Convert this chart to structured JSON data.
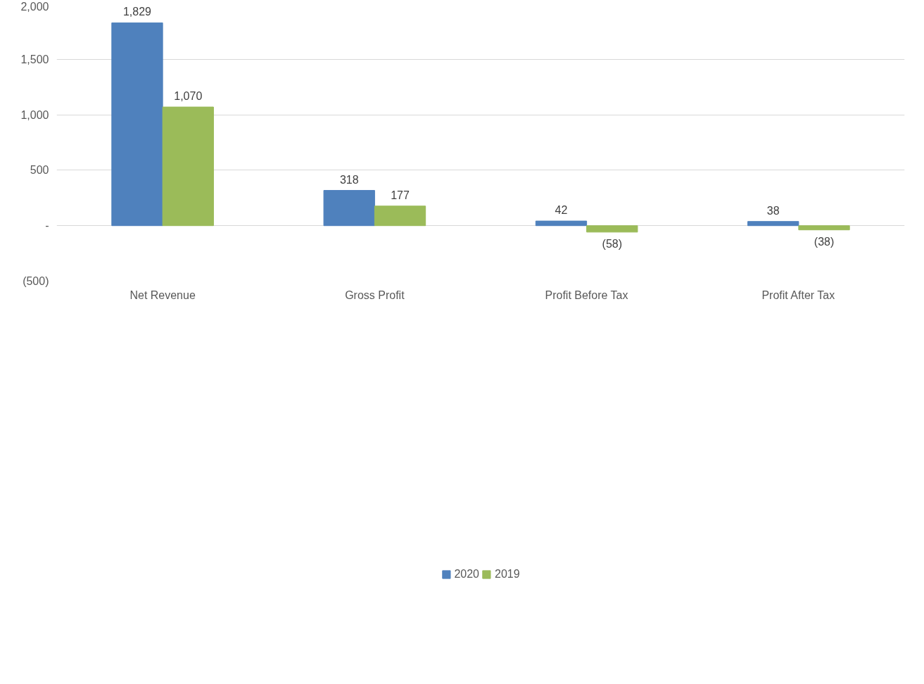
{
  "chart_data": {
    "type": "bar",
    "categories": [
      "Net Revenue",
      "Gross Profit",
      "Profit Before Tax",
      "Profit After Tax"
    ],
    "series": [
      {
        "name": "2020",
        "color": "#4f81bd",
        "values": [
          1829,
          318,
          42,
          38
        ],
        "value_labels": [
          "1,829",
          "318",
          "42",
          "38"
        ]
      },
      {
        "name": "2019",
        "color": "#9bbb59",
        "values": [
          1070,
          177,
          -58,
          -38
        ],
        "value_labels": [
          "1,070",
          "177",
          "(58)",
          "(38)"
        ]
      }
    ],
    "ylim": [
      -500,
      2000
    ],
    "yticks": [
      {
        "value": -500,
        "label": "(500)"
      },
      {
        "value": 0,
        "label": "-"
      },
      500,
      {
        "value": 1000,
        "label": "1,000"
      },
      {
        "value": 1500,
        "label": "1,500"
      },
      {
        "value": 2000,
        "label": "2,000"
      }
    ],
    "grid": "y",
    "legend": "bottom"
  }
}
